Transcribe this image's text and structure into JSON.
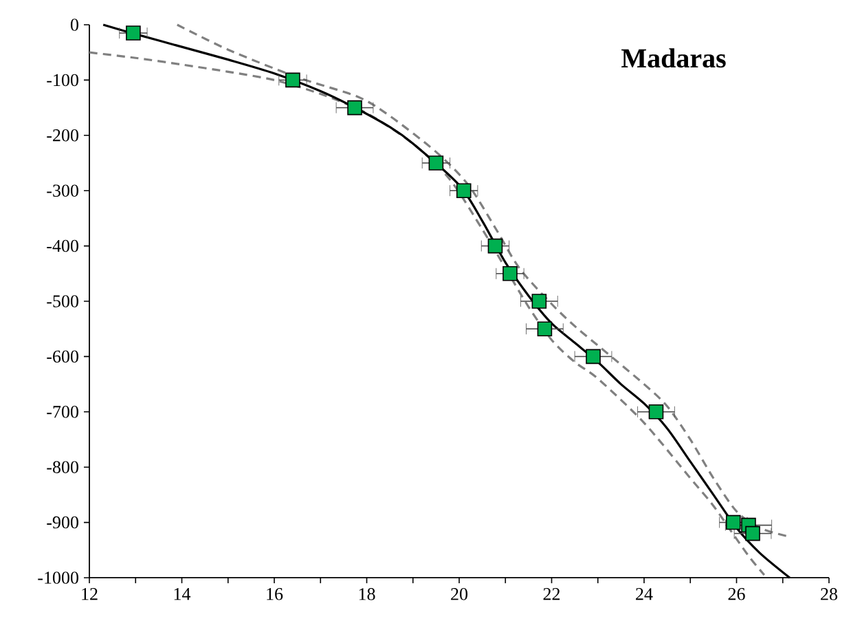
{
  "chart_data": {
    "type": "scatter",
    "title": "Madaras",
    "xlim": [
      12,
      28
    ],
    "ylim": [
      -1000,
      0
    ],
    "xticks": [
      12,
      {
        "value": 13,
        "label": null
      },
      14,
      {
        "value": 15,
        "label": null
      },
      16,
      {
        "value": 17,
        "label": null
      },
      18,
      {
        "value": 19,
        "label": null
      },
      20,
      {
        "value": 21,
        "label": null
      },
      22,
      {
        "value": 23,
        "label": null
      },
      24,
      {
        "value": 25,
        "label": null
      },
      26,
      {
        "value": 27,
        "label": null
      },
      28
    ],
    "yticks": [
      -1000,
      -900,
      -800,
      -700,
      -600,
      -500,
      -400,
      -300,
      -200,
      -100,
      0
    ],
    "grid": false,
    "series": [
      {
        "type": "line",
        "color": "#808080",
        "line_style": "dashed",
        "marker": "none",
        "x": [
          13.9,
          15,
          16.5,
          17.8,
          18.5,
          19.5,
          20.2,
          20.8,
          21.3,
          22,
          22.5,
          23,
          24,
          24.5,
          25,
          25.5,
          26,
          26.5,
          27.1
        ],
        "values": [
          0,
          -45,
          -95,
          -130,
          -165,
          -230,
          -290,
          -370,
          -440,
          -505,
          -545,
          -580,
          -650,
          -690,
          -750,
          -820,
          -880,
          -910,
          -925
        ]
      },
      {
        "type": "line",
        "color": "#808080",
        "line_style": "dashed",
        "marker": "none",
        "x": [
          12,
          13,
          14,
          15,
          16,
          17,
          18,
          19,
          19.8,
          20.5,
          21,
          21.5,
          22,
          22.5,
          23,
          24,
          25,
          25.5,
          26,
          26.3,
          26.6
        ],
        "values": [
          -50,
          -60,
          -72,
          -85,
          -100,
          -125,
          -160,
          -215,
          -280,
          -370,
          -440,
          -510,
          -570,
          -610,
          -640,
          -720,
          -820,
          -870,
          -930,
          -965,
          -995
        ]
      },
      {
        "type": "line",
        "color": "#000000",
        "line_style": "solid",
        "marker": "none",
        "x": [
          12.3,
          13,
          14,
          15,
          16,
          17,
          17.7,
          18.5,
          19,
          20,
          20.5,
          21,
          21.5,
          22,
          22.5,
          23,
          23.5,
          24,
          24.5,
          25,
          25.5,
          26,
          26.5,
          27.15
        ],
        "values": [
          0,
          -17,
          -40,
          -63,
          -88,
          -120,
          -148,
          -185,
          -215,
          -290,
          -355,
          -430,
          -490,
          -540,
          -575,
          -610,
          -650,
          -685,
          -730,
          -790,
          -850,
          -910,
          -955,
          -1000
        ]
      },
      {
        "color": "#00b050",
        "marker": "square",
        "x": [
          12.95,
          16.4,
          17.74,
          19.5,
          20.1,
          20.78,
          21.1,
          21.73,
          21.85,
          22.9,
          24.26,
          25.93,
          26.26,
          26.35
        ],
        "values": [
          -15,
          -100,
          -150,
          -250,
          -300,
          -400,
          -450,
          -500,
          -550,
          -600,
          -700,
          -900,
          -905,
          -920
        ],
        "xerrors": [
          0.3,
          0.3,
          0.4,
          0.3,
          0.3,
          0.3,
          0.3,
          0.4,
          0.4,
          0.4,
          0.4,
          0.3,
          0.5,
          0.4
        ]
      }
    ]
  }
}
